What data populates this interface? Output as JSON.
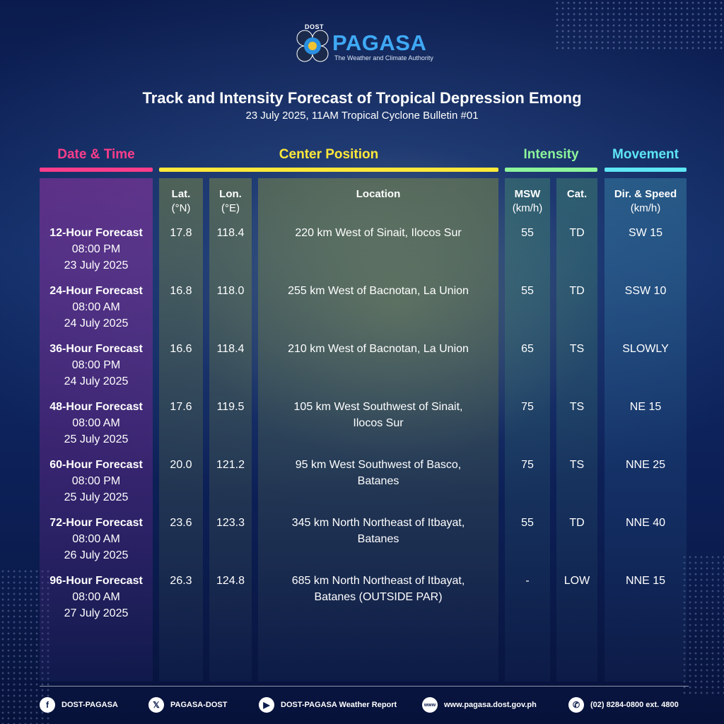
{
  "logo": {
    "dost": "DOST",
    "name": "PAGASA",
    "tagline": "The Weather and Climate Authority"
  },
  "title": "Track and Intensity Forecast of Tropical Depression Emong",
  "subtitle": "23 July 2025, 11AM Tropical Cyclone Bulletin #01",
  "groups": {
    "datetime": {
      "label": "Date & Time",
      "color": "#ff3d8b"
    },
    "center": {
      "label": "Center Position",
      "color": "#ffe83a"
    },
    "intensity": {
      "label": "Intensity",
      "color": "#8cf59b"
    },
    "movement": {
      "label": "Movement",
      "color": "#5ee6f5"
    }
  },
  "headers": {
    "lat": "Lat.",
    "lat_unit": "(°N)",
    "lon": "Lon.",
    "lon_unit": "(°E)",
    "location": "Location",
    "msw": "MSW",
    "msw_unit": "(km/h)",
    "cat": "Cat.",
    "dir": "Dir. & Speed",
    "dir_unit": "(km/h)"
  },
  "rows": [
    {
      "forecast": "12-Hour Forecast",
      "time": "08:00 PM",
      "date": "23 July 2025",
      "lat": "17.8",
      "lon": "118.4",
      "loc1": "220 km West of Sinait, Ilocos Sur",
      "loc2": "",
      "msw": "55",
      "cat": "TD",
      "move": "SW 15"
    },
    {
      "forecast": "24-Hour Forecast",
      "time": "08:00 AM",
      "date": "24 July 2025",
      "lat": "16.8",
      "lon": "118.0",
      "loc1": "255 km West of Bacnotan, La Union",
      "loc2": "",
      "msw": "55",
      "cat": "TD",
      "move": "SSW 10"
    },
    {
      "forecast": "36-Hour Forecast",
      "time": "08:00 PM",
      "date": "24 July 2025",
      "lat": "16.6",
      "lon": "118.4",
      "loc1": "210 km West of Bacnotan, La Union",
      "loc2": "",
      "msw": "65",
      "cat": "TS",
      "move": "SLOWLY"
    },
    {
      "forecast": "48-Hour Forecast",
      "time": "08:00 AM",
      "date": "25 July 2025",
      "lat": "17.6",
      "lon": "119.5",
      "loc1": "105 km West Southwest of Sinait,",
      "loc2": "Ilocos Sur",
      "msw": "75",
      "cat": "TS",
      "move": "NE 15"
    },
    {
      "forecast": "60-Hour Forecast",
      "time": "08:00 PM",
      "date": "25 July 2025",
      "lat": "20.0",
      "lon": "121.2",
      "loc1": "95 km West Southwest of Basco,",
      "loc2": "Batanes",
      "msw": "75",
      "cat": "TS",
      "move": "NNE 25"
    },
    {
      "forecast": "72-Hour Forecast",
      "time": "08:00 AM",
      "date": "26 July 2025",
      "lat": "23.6",
      "lon": "123.3",
      "loc1": "345 km North Northeast of Itbayat,",
      "loc2": "Batanes",
      "msw": "55",
      "cat": "TD",
      "move": "NNE 40"
    },
    {
      "forecast": "96-Hour Forecast",
      "time": "08:00 AM",
      "date": "27 July 2025",
      "lat": "26.3",
      "lon": "124.8",
      "loc1": "685 km North Northeast of Itbayat,",
      "loc2": "Batanes (OUTSIDE PAR)",
      "msw": "-",
      "cat": "LOW",
      "move": "NNE 15"
    }
  ],
  "footer": [
    {
      "icon": "facebook-icon",
      "glyph": "f",
      "label": "DOST-PAGASA"
    },
    {
      "icon": "x-icon",
      "glyph": "𝕏",
      "label": "PAGASA-DOST"
    },
    {
      "icon": "youtube-icon",
      "glyph": "▶",
      "label": "DOST-PAGASA Weather Report"
    },
    {
      "icon": "globe-icon",
      "glyph": "www",
      "label": "www.pagasa.dost.gov.ph"
    },
    {
      "icon": "phone-icon",
      "glyph": "✆",
      "label": "(02) 8284-0800 ext. 4800"
    }
  ]
}
